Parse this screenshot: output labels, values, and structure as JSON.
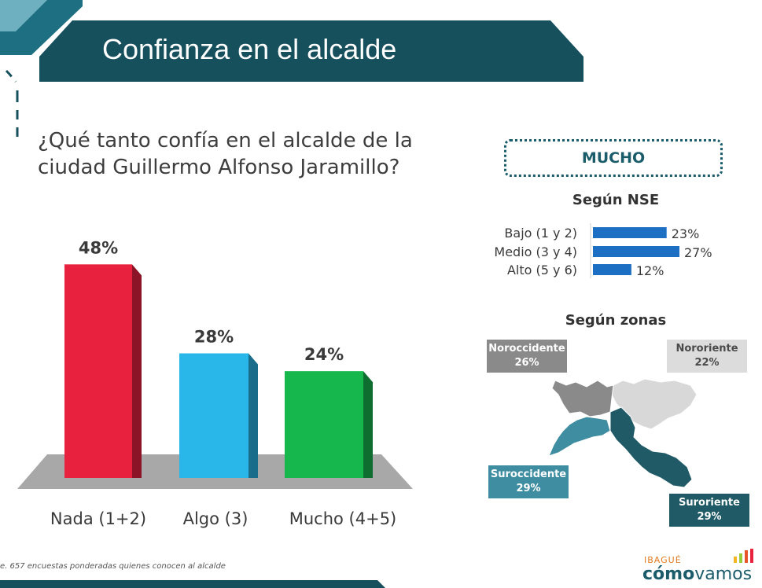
{
  "header": {
    "title": "Confianza en el alcalde"
  },
  "question": "¿Qué tanto confía en el alcalde de la ciudad Guillermo Alfonso Jaramillo?",
  "colors": {
    "teal": "#1b5c6b",
    "red": "#e8213f",
    "blue": "#29b6e8",
    "green": "#16b84e",
    "nse_bar": "#1c6fc2"
  },
  "chart_data": [
    {
      "type": "bar",
      "categories": [
        "Nada (1+2)",
        "Algo (3)",
        "Mucho (4+5)"
      ],
      "values": [
        48,
        28,
        24
      ],
      "value_labels": [
        "48%",
        "28%",
        "24%"
      ],
      "colors": [
        "#e8213f",
        "#29b6e8",
        "#16b84e"
      ],
      "ylim": [
        0,
        50
      ]
    },
    {
      "type": "bar",
      "orientation": "horizontal",
      "title": "Según NSE",
      "categories": [
        "Bajo (1 y 2)",
        "Medio (3 y 4)",
        "Alto (5 y 6)"
      ],
      "values": [
        23,
        27,
        12
      ],
      "value_labels": [
        "23%",
        "27%",
        "12%"
      ],
      "xlim": [
        0,
        30
      ]
    }
  ],
  "highlight": "MUCHO",
  "zonas": {
    "title": "Según zonas",
    "items": [
      {
        "name": "Noroccidente",
        "value": "26%"
      },
      {
        "name": "Nororiente",
        "value": "22%"
      },
      {
        "name": "Suroccidente",
        "value": "29%"
      },
      {
        "name": "Suroriente",
        "value": "29%"
      }
    ]
  },
  "footnote": "e. 657 encuestas ponderadas quienes conocen al alcalde",
  "logo": {
    "city": "IBAGUÉ",
    "brand_bold": "cómo",
    "brand_light": "vamos"
  }
}
